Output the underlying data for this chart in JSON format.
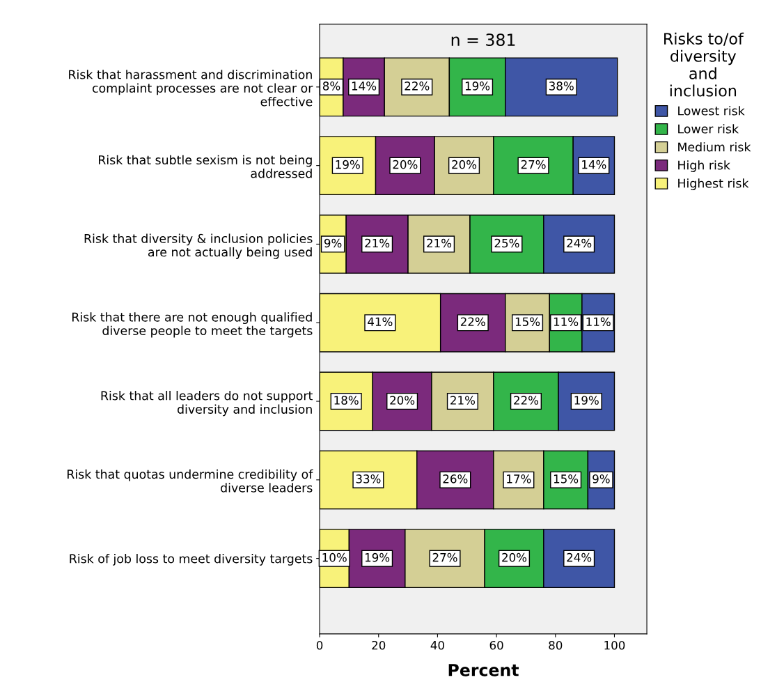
{
  "chart_data": {
    "type": "bar",
    "orientation": "horizontal",
    "stacked": true,
    "title": "n = 381",
    "xlabel": "Percent",
    "legend_title": "Risks to/of diversity and inclusion",
    "legend": "top right",
    "categories": [
      "Risk that harassment and discrimination complaint processes are not clear or effective",
      "Risk that subtle sexism is not being addressed",
      "Risk that diversity & inclusion policies are not actually being used",
      "Risk that there are not enough qualified diverse people to meet the targets",
      "Risk that all leaders do not support diversity and inclusion",
      "Risk that quotas undermine credibility of diverse leaders",
      "Risk of job loss to meet diversity targets"
    ],
    "series": [
      {
        "name": "Highest risk",
        "color": "#f8f27a",
        "values": [
          8,
          19,
          9,
          41,
          18,
          33,
          10
        ],
        "value_labels": [
          "8%",
          "19%",
          "9%",
          "41%",
          "18%",
          "33%",
          "10%"
        ]
      },
      {
        "name": "High risk",
        "color": "#7b2a7c",
        "values": [
          14,
          20,
          21,
          22,
          20,
          26,
          19
        ],
        "value_labels": [
          "14%",
          "20%",
          "21%",
          "22%",
          "20%",
          "26%",
          "19%"
        ]
      },
      {
        "name": "Medium risk",
        "color": "#d4cf95",
        "values": [
          22,
          20,
          21,
          15,
          21,
          17,
          27
        ],
        "value_labels": [
          "22%",
          "20%",
          "21%",
          "15%",
          "21%",
          "17%",
          "27%"
        ]
      },
      {
        "name": "Lower risk",
        "color": "#33b54a",
        "values": [
          19,
          27,
          25,
          11,
          22,
          15,
          20
        ],
        "value_labels": [
          "19%",
          "27%",
          "25%",
          "11%",
          "22%",
          "15%",
          "20%"
        ]
      },
      {
        "name": "Lowest risk",
        "color": "#3f56a6",
        "values": [
          38,
          14,
          24,
          11,
          19,
          9,
          24
        ],
        "value_labels": [
          "38%",
          "14%",
          "24%",
          "11%",
          "19%",
          "9%",
          "24%"
        ]
      }
    ],
    "xlim": [
      0,
      111
    ],
    "xticks": [
      0,
      20,
      40,
      60,
      80,
      100
    ],
    "grid": false
  }
}
